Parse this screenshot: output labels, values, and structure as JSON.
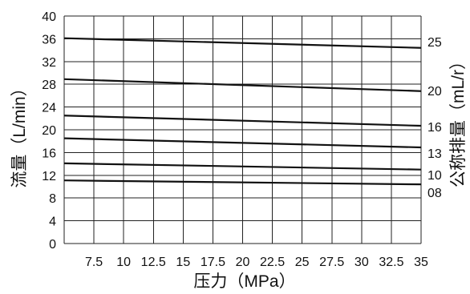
{
  "chart_data": {
    "type": "line",
    "xlabel": "压力（MPa）",
    "ylabel": "流量（L/min）",
    "y2label": "公称排量（mL/r）",
    "xlim": [
      5,
      35
    ],
    "ylim": [
      0,
      40
    ],
    "x_ticks": [
      7.5,
      10,
      12.5,
      15,
      17.5,
      20,
      22.5,
      25,
      27.5,
      30,
      32.5,
      35
    ],
    "y_ticks": [
      0,
      4,
      8,
      12,
      16,
      20,
      24,
      28,
      32,
      36,
      40
    ],
    "grid": true,
    "legend": "right",
    "series": [
      {
        "name": "25",
        "x": [
          5,
          35
        ],
        "y": [
          36.1,
          34.4
        ]
      },
      {
        "name": "20",
        "x": [
          5,
          35
        ],
        "y": [
          28.9,
          26.8
        ]
      },
      {
        "name": "16",
        "x": [
          5,
          35
        ],
        "y": [
          22.5,
          20.7
        ]
      },
      {
        "name": "13",
        "x": [
          5,
          35
        ],
        "y": [
          18.5,
          16.9
        ]
      },
      {
        "name": "10",
        "x": [
          5,
          35
        ],
        "y": [
          14.1,
          13.0
        ]
      },
      {
        "name": "08",
        "x": [
          5,
          35
        ],
        "y": [
          11.1,
          10.4
        ]
      }
    ]
  },
  "colors": {
    "line": "#111111",
    "grid": "#222222",
    "background": "#ffffff"
  }
}
